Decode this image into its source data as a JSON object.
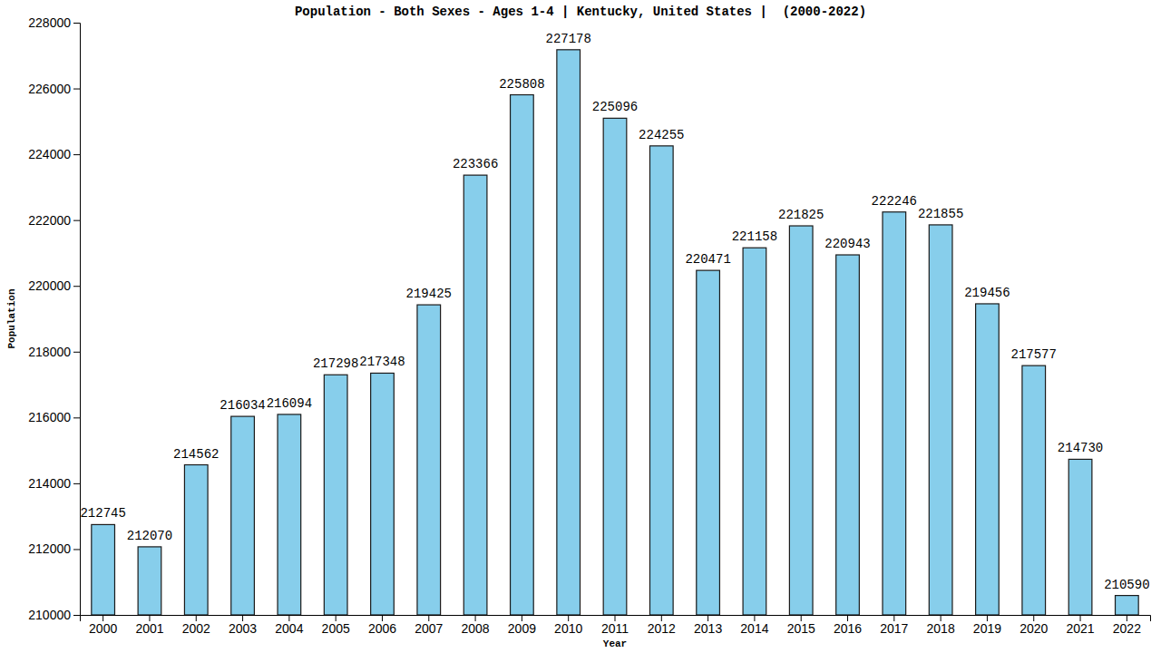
{
  "chart_data": {
    "type": "bar",
    "title": "Population - Both Sexes - Ages 1-4 | Kentucky, United States |  (2000-2022)",
    "x_label": "Year",
    "y_label": "Population",
    "categories": [
      "2000",
      "2001",
      "2002",
      "2003",
      "2004",
      "2005",
      "2006",
      "2007",
      "2008",
      "2009",
      "2010",
      "2011",
      "2012",
      "2013",
      "2014",
      "2015",
      "2016",
      "2017",
      "2018",
      "2019",
      "2020",
      "2021",
      "2022"
    ],
    "values": [
      212745,
      212070,
      214562,
      216034,
      216094,
      217298,
      217348,
      219425,
      223366,
      225808,
      227178,
      225096,
      224255,
      220471,
      221158,
      221825,
      220943,
      222246,
      221855,
      219456,
      217577,
      214730,
      210590
    ],
    "color": "#87ceeb",
    "ylim": [
      210000,
      228000
    ],
    "yticks": [
      210000,
      212000,
      214000,
      216000,
      218000,
      220000,
      222000,
      224000,
      226000,
      228000
    ],
    "grid": false,
    "data_labels": true
  }
}
